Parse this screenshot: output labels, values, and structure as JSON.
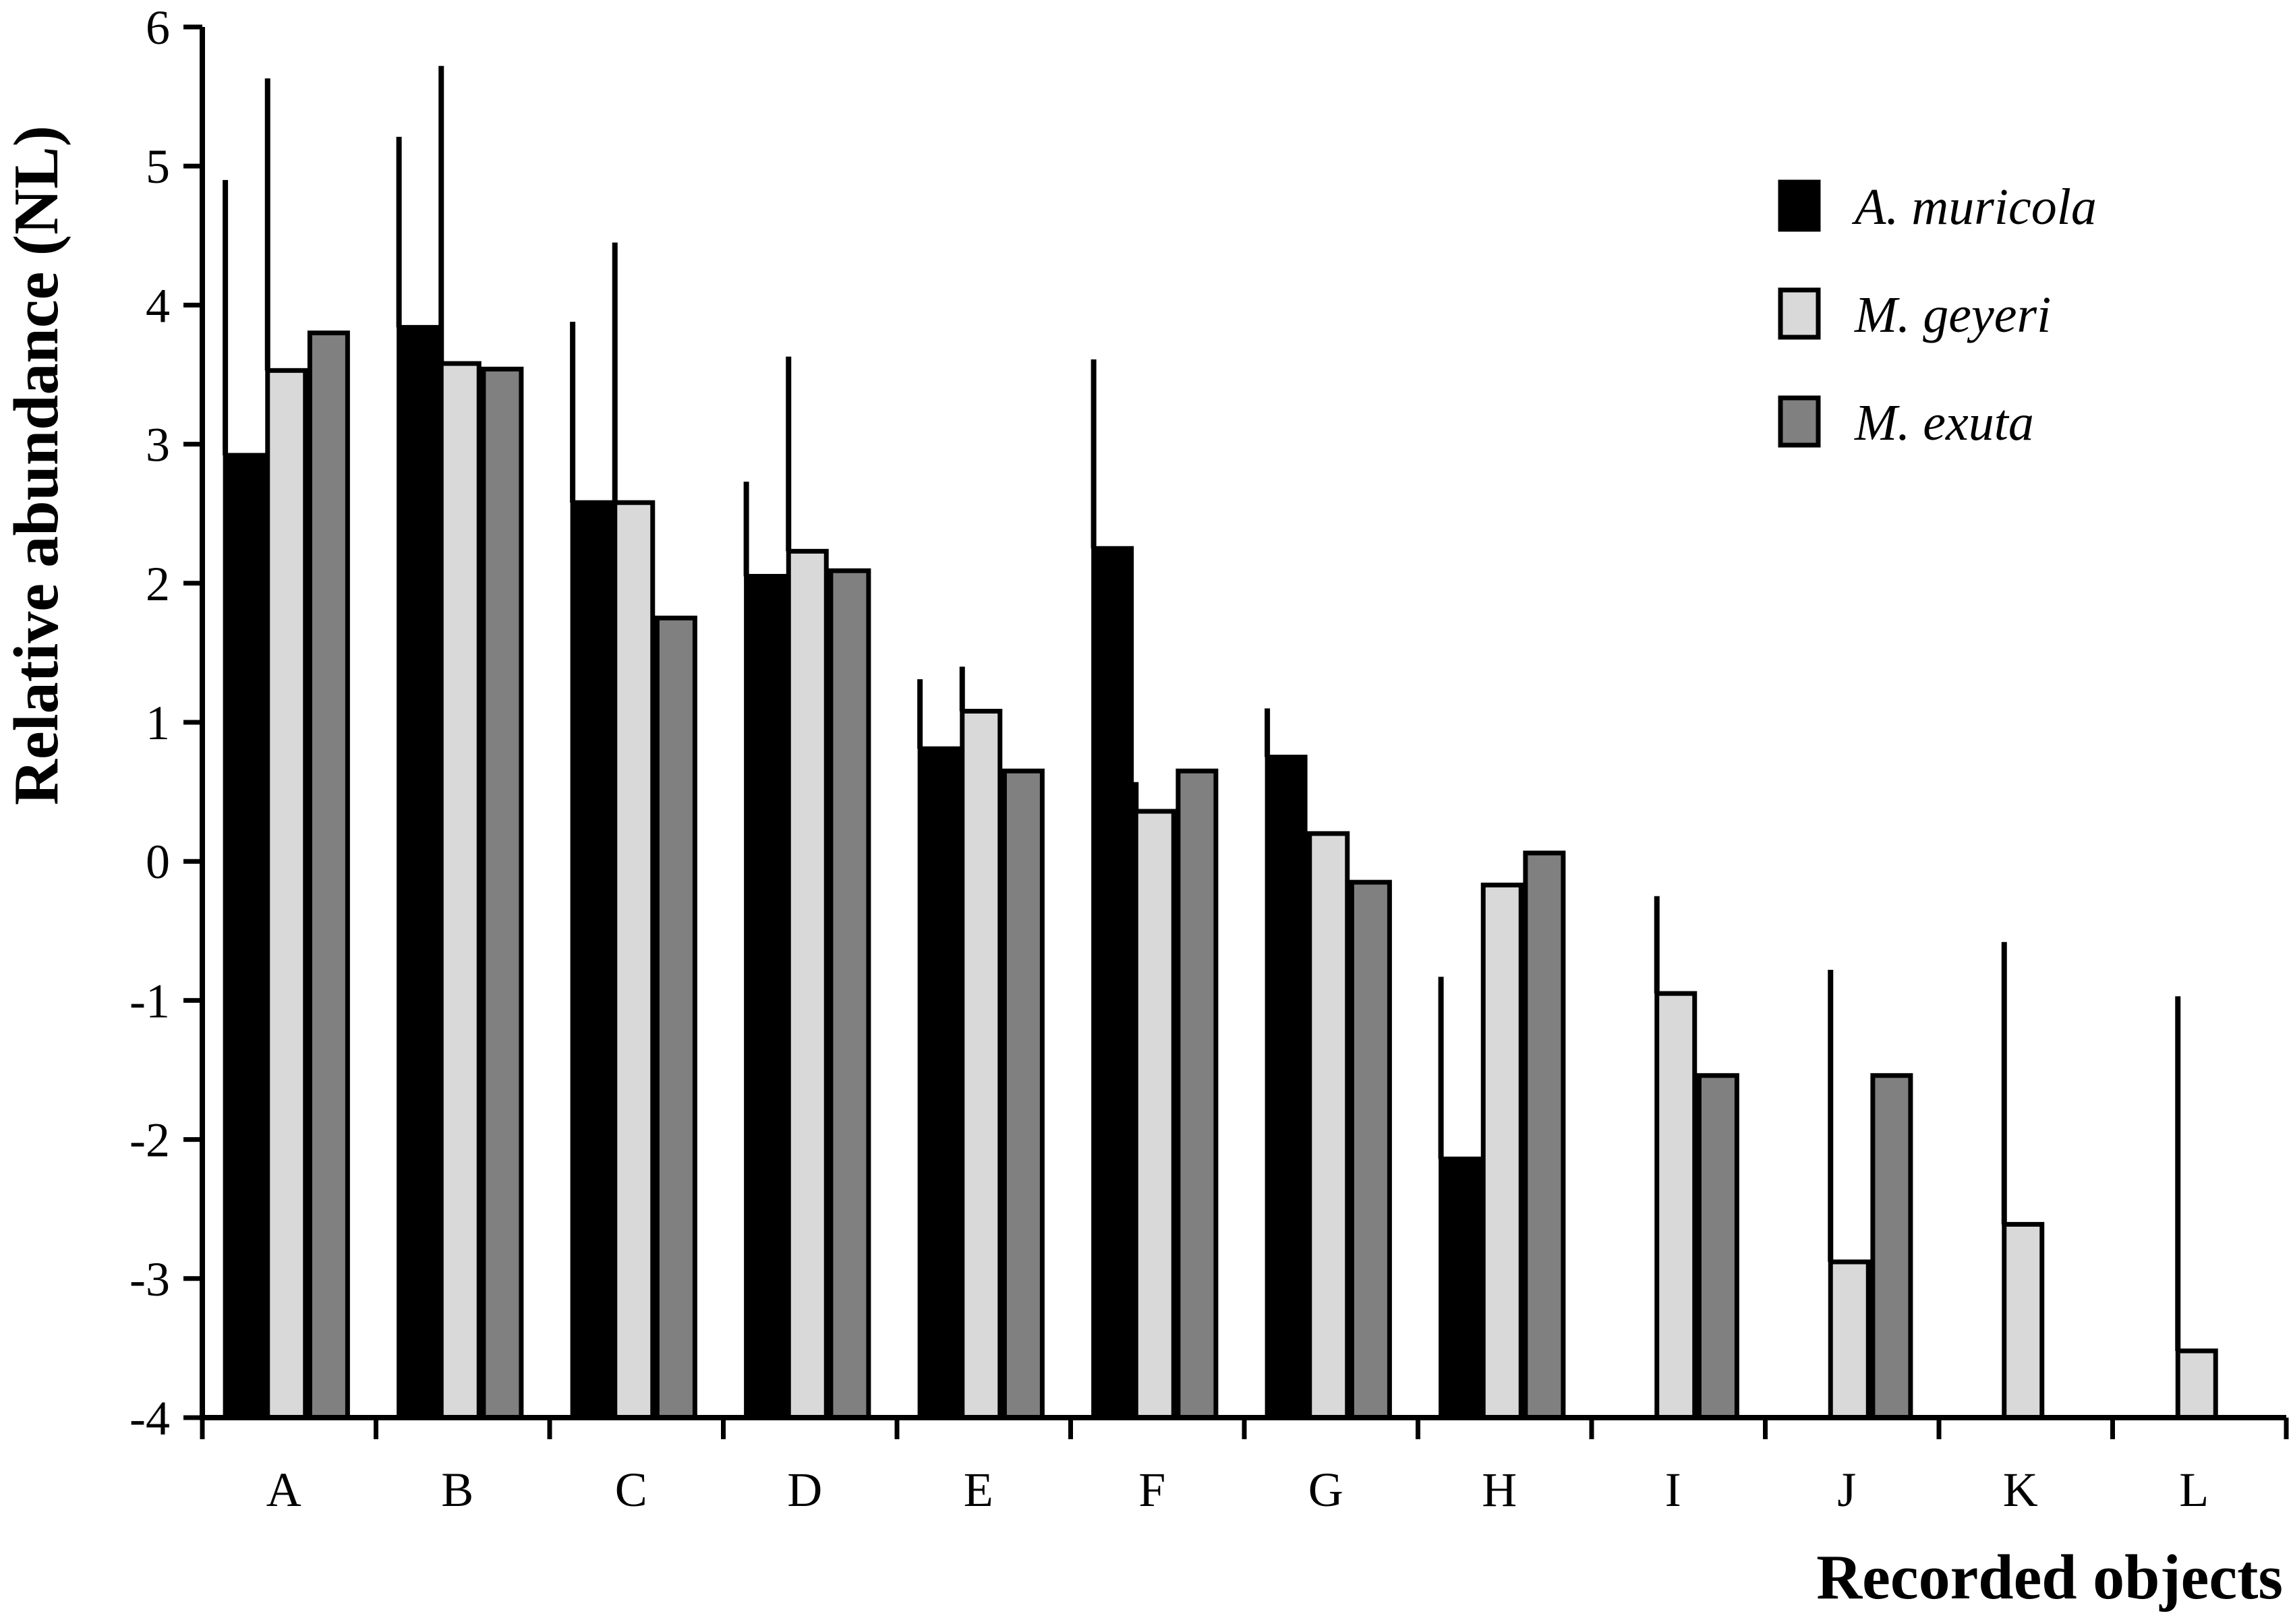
{
  "chart_data": {
    "type": "bar",
    "title": "",
    "xlabel": "Recorded objects",
    "ylabel": "Relative abundance (NL)",
    "ylim": [
      -4,
      6
    ],
    "yticks": [
      "6",
      "5",
      "4",
      "3",
      "2",
      "1",
      "0",
      "-1",
      "-2",
      "-3",
      "-4"
    ],
    "grid": false,
    "legend_position": "top-right",
    "categories": [
      "A",
      "B",
      "C",
      "D",
      "E",
      "F",
      "G",
      "H",
      "I",
      "J",
      "K",
      "L"
    ],
    "series": [
      {
        "name": "A. muricola",
        "color": "#000000",
        "values": [
          2.92,
          3.84,
          2.58,
          2.05,
          0.81,
          2.25,
          0.75,
          -2.14,
          null,
          null,
          null,
          null
        ],
        "error_upper": [
          4.9,
          5.21,
          3.88,
          2.73,
          1.31,
          3.61,
          1.1,
          -0.83,
          null,
          null,
          null,
          null
        ]
      },
      {
        "name": "M. geyeri",
        "color": "#d9d9d9",
        "values": [
          3.53,
          3.58,
          2.58,
          2.23,
          1.08,
          0.36,
          0.2,
          -0.17,
          -0.95,
          -2.88,
          -2.61,
          -3.52
        ],
        "error_upper": [
          5.63,
          5.72,
          4.45,
          3.63,
          1.4,
          0.57,
          null,
          null,
          -0.25,
          -0.78,
          -0.58,
          -0.97
        ]
      },
      {
        "name": "M. exuta",
        "color": "#808080",
        "values": [
          3.8,
          3.54,
          1.75,
          2.09,
          0.65,
          0.65,
          -0.15,
          0.06,
          -1.54,
          -1.54,
          null,
          null
        ],
        "error_upper": [
          null,
          null,
          null,
          null,
          null,
          null,
          null,
          null,
          null,
          null,
          null,
          null
        ]
      }
    ]
  }
}
